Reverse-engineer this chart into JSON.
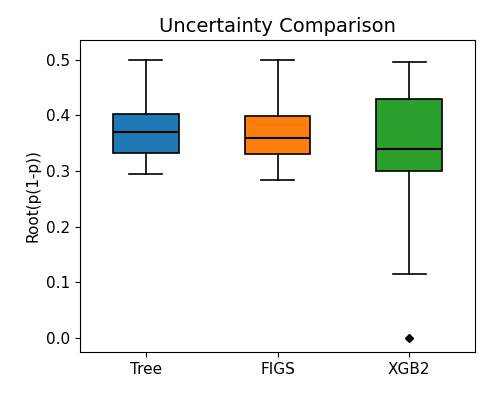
{
  "title": "Uncertainty Comparison",
  "ylabel": "Root(p(1-p))",
  "categories": [
    "Tree",
    "FIGS",
    "XGB2"
  ],
  "colors": [
    "#1f77b4",
    "#ff7f0e",
    "#2ca02c"
  ],
  "boxes": [
    {
      "q1": 0.332,
      "median": 0.37,
      "q3": 0.402,
      "whisker_low": 0.295,
      "whisker_high": 0.5,
      "outliers": []
    },
    {
      "q1": 0.33,
      "median": 0.36,
      "q3": 0.398,
      "whisker_low": 0.283,
      "whisker_high": 0.5,
      "outliers": []
    },
    {
      "q1": 0.3,
      "median": 0.34,
      "q3": 0.43,
      "whisker_low": 0.115,
      "whisker_high": 0.495,
      "outliers": [
        0.001
      ]
    }
  ],
  "ylim": [
    -0.025,
    0.535
  ],
  "yticks": [
    0.0,
    0.1,
    0.2,
    0.3,
    0.4,
    0.5
  ],
  "figsize": [
    5.0,
    4.0
  ],
  "dpi": 100,
  "title_fontsize": 14,
  "label_fontsize": 11,
  "tick_fontsize": 11
}
